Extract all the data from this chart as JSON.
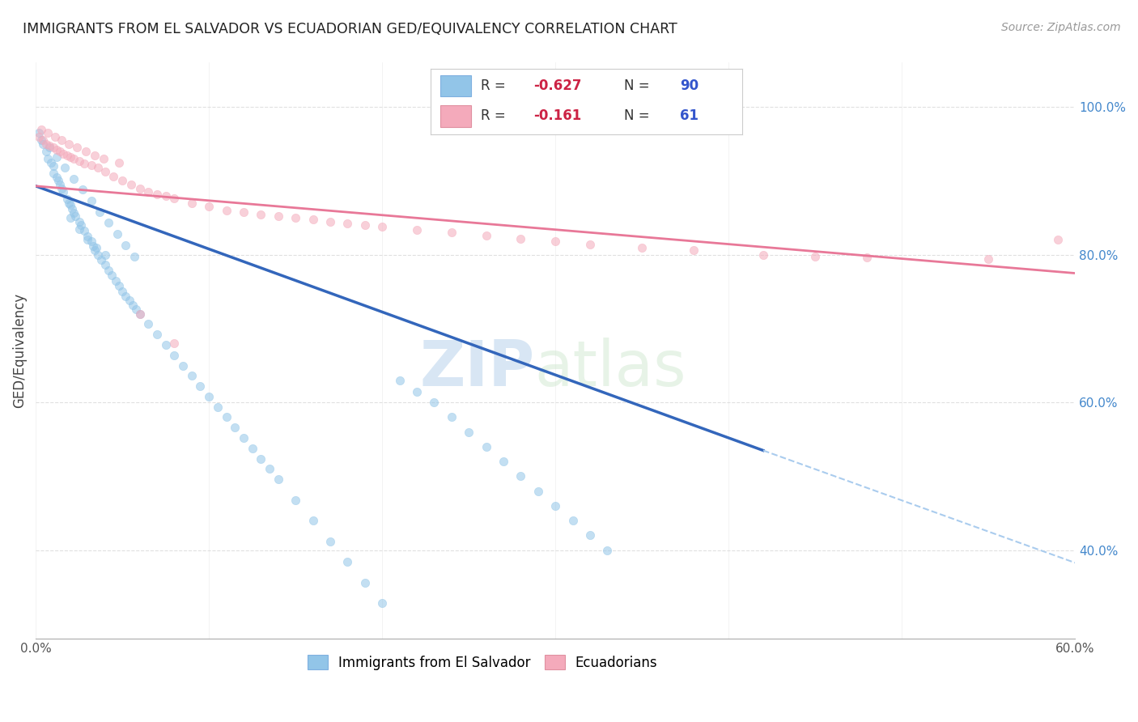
{
  "title": "IMMIGRANTS FROM EL SALVADOR VS ECUADORIAN GED/EQUIVALENCY CORRELATION CHART",
  "source": "Source: ZipAtlas.com",
  "ylabel": "GED/Equivalency",
  "xlim": [
    0.0,
    0.6
  ],
  "ylim": [
    0.28,
    1.06
  ],
  "x_ticks": [
    0.0,
    0.1,
    0.2,
    0.3,
    0.4,
    0.5,
    0.6
  ],
  "x_tick_labels": [
    "0.0%",
    "",
    "",
    "",
    "",
    "",
    "60.0%"
  ],
  "y_ticks": [
    0.4,
    0.6,
    0.8,
    1.0
  ],
  "y_tick_labels": [
    "40.0%",
    "60.0%",
    "80.0%",
    "100.0%"
  ],
  "blue_color": "#92C5E8",
  "pink_color": "#F4AABB",
  "blue_line_color": "#3366BB",
  "pink_line_color": "#E87898",
  "dashed_line_color": "#AACCEE",
  "watermark": "ZIPatlas",
  "blue_scatter_x": [
    0.002,
    0.004,
    0.006,
    0.007,
    0.009,
    0.01,
    0.01,
    0.012,
    0.013,
    0.014,
    0.015,
    0.016,
    0.018,
    0.019,
    0.02,
    0.021,
    0.022,
    0.023,
    0.025,
    0.026,
    0.028,
    0.03,
    0.032,
    0.033,
    0.034,
    0.036,
    0.038,
    0.04,
    0.042,
    0.044,
    0.046,
    0.048,
    0.05,
    0.052,
    0.054,
    0.056,
    0.058,
    0.06,
    0.065,
    0.07,
    0.075,
    0.08,
    0.085,
    0.09,
    0.095,
    0.1,
    0.105,
    0.11,
    0.115,
    0.12,
    0.125,
    0.13,
    0.135,
    0.14,
    0.15,
    0.16,
    0.17,
    0.18,
    0.19,
    0.2,
    0.21,
    0.22,
    0.23,
    0.24,
    0.25,
    0.26,
    0.27,
    0.28,
    0.29,
    0.3,
    0.31,
    0.32,
    0.33,
    0.02,
    0.025,
    0.03,
    0.035,
    0.04,
    0.003,
    0.008,
    0.012,
    0.017,
    0.022,
    0.027,
    0.032,
    0.037,
    0.042,
    0.047,
    0.052,
    0.057
  ],
  "blue_scatter_y": [
    0.965,
    0.95,
    0.94,
    0.93,
    0.925,
    0.92,
    0.91,
    0.905,
    0.9,
    0.895,
    0.89,
    0.885,
    0.875,
    0.87,
    0.868,
    0.862,
    0.857,
    0.852,
    0.845,
    0.84,
    0.832,
    0.825,
    0.818,
    0.812,
    0.806,
    0.8,
    0.793,
    0.786,
    0.779,
    0.772,
    0.765,
    0.758,
    0.75,
    0.744,
    0.738,
    0.732,
    0.726,
    0.72,
    0.706,
    0.692,
    0.678,
    0.664,
    0.65,
    0.636,
    0.622,
    0.608,
    0.594,
    0.58,
    0.566,
    0.552,
    0.538,
    0.524,
    0.51,
    0.496,
    0.468,
    0.44,
    0.412,
    0.384,
    0.356,
    0.328,
    0.63,
    0.615,
    0.6,
    0.58,
    0.56,
    0.54,
    0.52,
    0.5,
    0.48,
    0.46,
    0.44,
    0.42,
    0.4,
    0.85,
    0.835,
    0.82,
    0.81,
    0.8,
    0.955,
    0.945,
    0.932,
    0.918,
    0.903,
    0.888,
    0.873,
    0.858,
    0.843,
    0.828,
    0.813,
    0.798
  ],
  "pink_scatter_x": [
    0.002,
    0.004,
    0.006,
    0.008,
    0.01,
    0.012,
    0.014,
    0.016,
    0.018,
    0.02,
    0.022,
    0.025,
    0.028,
    0.032,
    0.036,
    0.04,
    0.045,
    0.05,
    0.055,
    0.06,
    0.065,
    0.07,
    0.075,
    0.08,
    0.09,
    0.1,
    0.11,
    0.12,
    0.13,
    0.14,
    0.15,
    0.16,
    0.17,
    0.18,
    0.19,
    0.2,
    0.22,
    0.24,
    0.26,
    0.28,
    0.3,
    0.32,
    0.35,
    0.38,
    0.42,
    0.45,
    0.48,
    0.55,
    0.59,
    0.003,
    0.007,
    0.011,
    0.015,
    0.019,
    0.024,
    0.029,
    0.034,
    0.039,
    0.048,
    0.06,
    0.08
  ],
  "pink_scatter_y": [
    0.96,
    0.955,
    0.95,
    0.948,
    0.945,
    0.942,
    0.94,
    0.937,
    0.935,
    0.932,
    0.93,
    0.927,
    0.924,
    0.921,
    0.918,
    0.912,
    0.906,
    0.9,
    0.895,
    0.89,
    0.885,
    0.882,
    0.88,
    0.876,
    0.87,
    0.865,
    0.86,
    0.858,
    0.855,
    0.852,
    0.85,
    0.848,
    0.845,
    0.842,
    0.84,
    0.838,
    0.834,
    0.83,
    0.826,
    0.822,
    0.818,
    0.814,
    0.81,
    0.806,
    0.8,
    0.798,
    0.796,
    0.794,
    0.82,
    0.97,
    0.965,
    0.96,
    0.955,
    0.95,
    0.945,
    0.94,
    0.935,
    0.93,
    0.925,
    0.72,
    0.68
  ],
  "blue_trend_x": [
    0.0,
    0.42
  ],
  "blue_trend_y": [
    0.893,
    0.535
  ],
  "pink_trend_x": [
    0.0,
    0.6
  ],
  "pink_trend_y": [
    0.893,
    0.775
  ],
  "dashed_trend_x": [
    0.42,
    0.6
  ],
  "dashed_trend_y": [
    0.535,
    0.383
  ],
  "background_color": "#FFFFFF",
  "grid_color": "#DDDDDD"
}
